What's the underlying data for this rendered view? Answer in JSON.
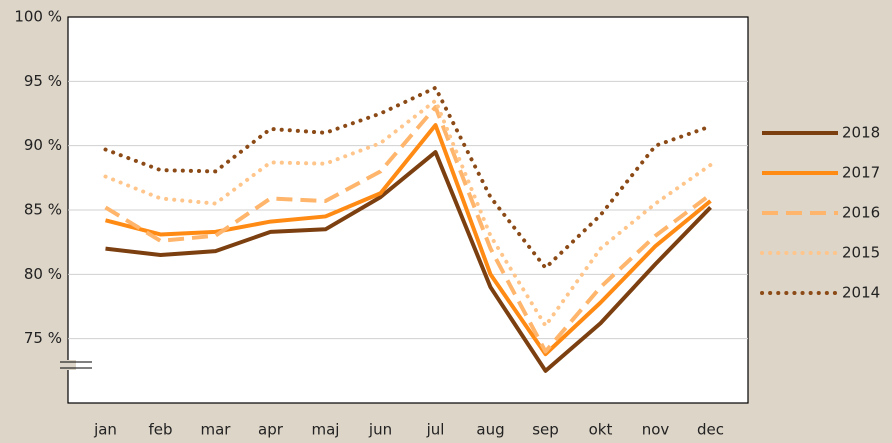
{
  "chart_data": {
    "type": "line",
    "categories": [
      "jan",
      "feb",
      "mar",
      "apr",
      "maj",
      "jun",
      "jul",
      "aug",
      "sep",
      "okt",
      "nov",
      "dec"
    ],
    "ylim": [
      70,
      100
    ],
    "yticks": [
      {
        "value": 75,
        "label": "75 %"
      },
      {
        "value": 80,
        "label": "80 %"
      },
      {
        "value": 85,
        "label": "85 %"
      },
      {
        "value": 90,
        "label": "90 %"
      },
      {
        "value": 95,
        "label": "95 %"
      },
      {
        "value": 100,
        "label": "100 %"
      }
    ],
    "grid": true,
    "legend": "right",
    "series": [
      {
        "name": "2018",
        "color": "#7b3f10",
        "style": "solid",
        "values": [
          82.0,
          81.5,
          81.8,
          83.3,
          83.5,
          86.0,
          89.5,
          79.0,
          72.5,
          76.2,
          80.8,
          85.2
        ]
      },
      {
        "name": "2017",
        "color": "#ff8a14",
        "style": "solid",
        "values": [
          84.2,
          83.1,
          83.3,
          84.1,
          84.5,
          86.3,
          91.6,
          80.0,
          73.8,
          77.8,
          82.2,
          85.7
        ]
      },
      {
        "name": "2016",
        "color": "#ffb56b",
        "style": "dashed",
        "values": [
          85.2,
          82.6,
          83.0,
          85.9,
          85.7,
          88.0,
          93.0,
          82.0,
          74.0,
          79.0,
          83.0,
          86.2
        ]
      },
      {
        "name": "2015",
        "color": "#ffc58a",
        "style": "dotted",
        "values": [
          87.6,
          85.9,
          85.5,
          88.7,
          88.6,
          90.2,
          93.5,
          83.0,
          76.0,
          82.0,
          85.5,
          88.5
        ]
      },
      {
        "name": "2014",
        "color": "#8b4a16",
        "style": "dotted",
        "values": [
          89.7,
          88.1,
          88.0,
          91.3,
          91.0,
          92.5,
          94.5,
          86.0,
          80.5,
          84.6,
          90.0,
          91.5
        ]
      }
    ]
  }
}
